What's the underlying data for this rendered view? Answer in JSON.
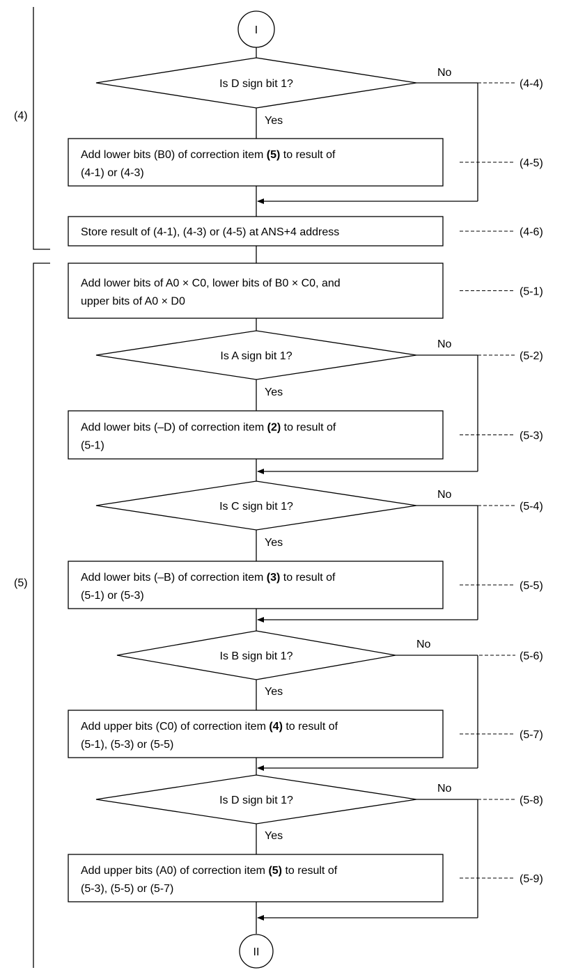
{
  "terminals": {
    "start": "I",
    "end": "II"
  },
  "branch_labels": {
    "no": "No",
    "yes": "Yes"
  },
  "sections": [
    {
      "id": "s4",
      "label": "(4)"
    },
    {
      "id": "s5",
      "label": "(5)"
    }
  ],
  "steps": [
    {
      "id": "d44",
      "type": "decision",
      "lines": [
        "Is D sign bit 1?"
      ],
      "ref": "(4-4)"
    },
    {
      "id": "p45",
      "type": "process",
      "lines": [
        [
          "Add lower bits (B0) of correction item ",
          "(5)",
          " to result of"
        ],
        "(4-1) or (4-3)"
      ],
      "ref": "(4-5)"
    },
    {
      "id": "p46",
      "type": "process",
      "lines": [
        "Store result of (4-1), (4-3) or (4-5) at ANS+4 address"
      ],
      "ref": "(4-6)"
    },
    {
      "id": "p51",
      "type": "process",
      "lines": [
        "Add lower bits of A0 × C0, lower bits of B0 × C0, and",
        "upper bits of A0 × D0"
      ],
      "ref": "(5-1)"
    },
    {
      "id": "d52",
      "type": "decision",
      "lines": [
        "Is A sign bit 1?"
      ],
      "ref": "(5-2)"
    },
    {
      "id": "p53",
      "type": "process",
      "lines": [
        [
          "Add lower bits (–D) of correction item ",
          "(2)",
          " to result of"
        ],
        "(5-1)"
      ],
      "ref": "(5-3)"
    },
    {
      "id": "d54",
      "type": "decision",
      "lines": [
        "Is C sign bit 1?"
      ],
      "ref": "(5-4)"
    },
    {
      "id": "p55",
      "type": "process",
      "lines": [
        [
          "Add lower bits (–B) of correction item ",
          "(3)",
          " to result of"
        ],
        "(5-1) or (5-3)"
      ],
      "ref": "(5-5)"
    },
    {
      "id": "d56",
      "type": "decision",
      "lines": [
        "Is B sign bit 1?"
      ],
      "ref": "(5-6)"
    },
    {
      "id": "p57",
      "type": "process",
      "lines": [
        [
          "Add upper bits (C0) of correction item ",
          "(4)",
          " to result of"
        ],
        "(5-1), (5-3) or (5-5)"
      ],
      "ref": "(5-7)"
    },
    {
      "id": "d58",
      "type": "decision",
      "lines": [
        "Is D sign bit 1?"
      ],
      "ref": "(5-8)"
    },
    {
      "id": "p59",
      "type": "process",
      "lines": [
        [
          "Add upper bits (A0) of correction item ",
          "(5)",
          " to result of"
        ],
        "(5-3), (5-5) or (5-7)"
      ],
      "ref": "(5-9)"
    }
  ]
}
